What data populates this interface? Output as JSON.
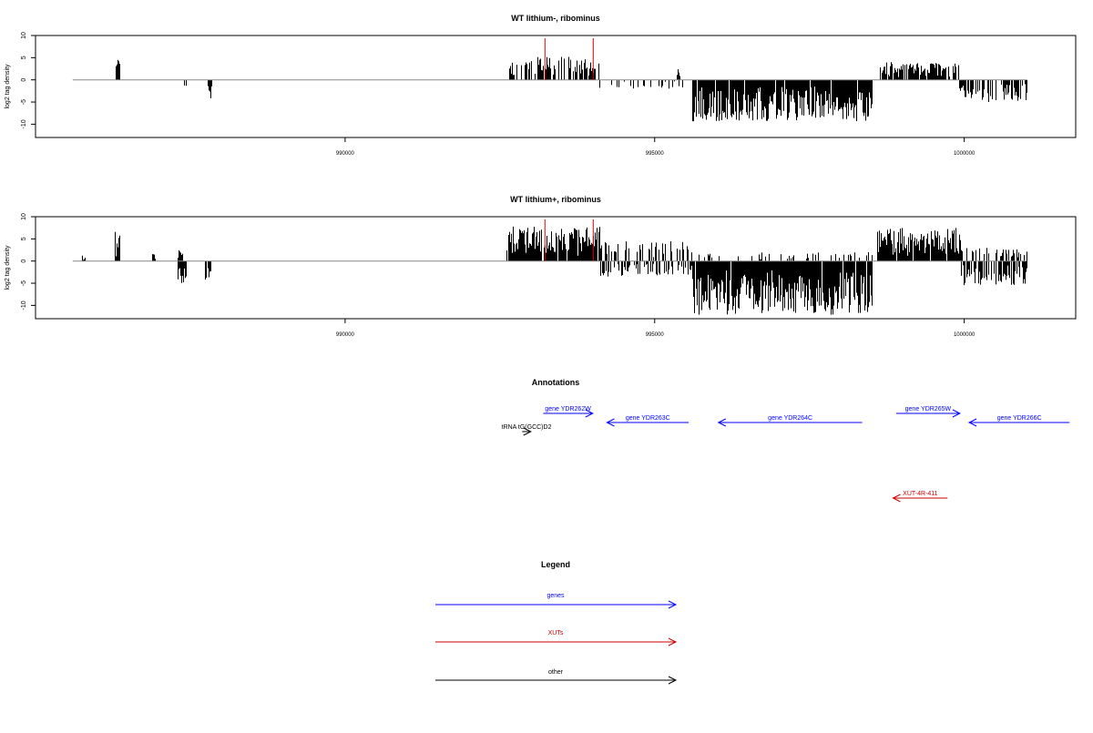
{
  "panels": [
    {
      "title": "WT lithium-, ribominus",
      "ylabel": "log2 tag density",
      "y_ticks": [
        "10",
        "5",
        "0",
        "-5",
        "-10"
      ],
      "x_ticks": [
        "990000",
        "995000",
        "1000000"
      ]
    },
    {
      "title": "WT lithium+, ribominus",
      "ylabel": "log2 tag density",
      "y_ticks": [
        "10",
        "5",
        "0",
        "-5",
        "-10"
      ],
      "x_ticks": [
        "990000",
        "995000",
        "1000000"
      ]
    }
  ],
  "annotations": {
    "title": "Annotations",
    "features": [
      {
        "label": "gene YDR262W",
        "type": "gene",
        "strand": "+",
        "start": 993200,
        "end": 994000,
        "row": 1,
        "color": "#0000ff"
      },
      {
        "label": "gene YDR263C",
        "type": "gene",
        "strand": "-",
        "start": 994230,
        "end": 995550,
        "row": 2,
        "color": "#0000ff"
      },
      {
        "label": "gene YDR264C",
        "type": "gene",
        "strand": "-",
        "start": 996030,
        "end": 998350,
        "row": 2,
        "color": "#0000ff"
      },
      {
        "label": "gene YDR265W",
        "type": "gene",
        "strand": "+",
        "start": 998900,
        "end": 999930,
        "row": 1,
        "color": "#0000ff"
      },
      {
        "label": "gene YDR266C",
        "type": "gene",
        "strand": "-",
        "start": 1000080,
        "end": 1001700,
        "row": 2,
        "color": "#0000ff"
      },
      {
        "label": "tRNA tG(GCC)D2",
        "type": "other",
        "strand": "+",
        "start": 992860,
        "end": 993000,
        "row": 3,
        "color": "#000000"
      },
      {
        "label": "XUT-4R-411",
        "type": "XUT",
        "strand": "-",
        "start": 998850,
        "end": 999730,
        "row": 4,
        "color": "#cc0000"
      }
    ]
  },
  "legend": {
    "title": "Legend",
    "items": [
      {
        "label": "genes",
        "color": "#0000ff"
      },
      {
        "label": "XUTs",
        "color": "#cc0000"
      },
      {
        "label": "other",
        "color": "#000000"
      }
    ]
  },
  "chart_data": [
    {
      "type": "bar",
      "title": "WT lithium-, ribominus",
      "xlabel": "",
      "ylabel": "log2 tag density",
      "xlim": [
        985000,
        1001800
      ],
      "ylim": [
        -13,
        10
      ],
      "x_ticks": [
        990000,
        995000,
        1000000
      ],
      "y_ticks": [
        10,
        5,
        0,
        -5,
        -10
      ],
      "baseline": {
        "from": 985600,
        "to": 1001000
      },
      "markers": [
        993220,
        994000
      ],
      "regions": [
        {
          "from": 986300,
          "to": 986350,
          "sign": 1,
          "max": 4.6,
          "density": 0.9
        },
        {
          "from": 987400,
          "to": 987430,
          "sign": -1,
          "max": 2.2,
          "density": 0.6
        },
        {
          "from": 987780,
          "to": 987850,
          "sign": -1,
          "max": 4.2,
          "density": 0.9
        },
        {
          "from": 992600,
          "to": 994100,
          "sign": 1,
          "max": 5.2,
          "density": 0.55
        },
        {
          "from": 994100,
          "to": 995500,
          "sign": -1,
          "max": 2.0,
          "density": 0.18
        },
        {
          "from": 995350,
          "to": 995400,
          "sign": 1,
          "max": 2.8,
          "density": 0.9
        },
        {
          "from": 995600,
          "to": 998500,
          "sign": -1,
          "max": 9.4,
          "density": 0.95
        },
        {
          "from": 998600,
          "to": 999900,
          "sign": 1,
          "max": 4.0,
          "density": 0.7
        },
        {
          "from": 999900,
          "to": 1001000,
          "sign": -1,
          "max": 5.0,
          "density": 0.55
        }
      ]
    },
    {
      "type": "bar",
      "title": "WT lithium+, ribominus",
      "xlabel": "",
      "ylabel": "log2 tag density",
      "xlim": [
        985000,
        1001800
      ],
      "ylim": [
        -13,
        10
      ],
      "x_ticks": [
        990000,
        995000,
        1000000
      ],
      "y_ticks": [
        10,
        5,
        0,
        -5,
        -10
      ],
      "baseline": {
        "from": 985600,
        "to": 1001000
      },
      "markers": [
        993220,
        994000
      ],
      "regions": [
        {
          "from": 985750,
          "to": 985790,
          "sign": 1,
          "max": 1.5,
          "density": 0.8
        },
        {
          "from": 986280,
          "to": 986360,
          "sign": 1,
          "max": 6.8,
          "density": 0.9
        },
        {
          "from": 986880,
          "to": 986930,
          "sign": 1,
          "max": 2.8,
          "density": 0.9
        },
        {
          "from": 987300,
          "to": 987400,
          "sign": 1,
          "max": 4.2,
          "density": 0.9
        },
        {
          "from": 987300,
          "to": 987420,
          "sign": -1,
          "max": 5.2,
          "density": 0.9
        },
        {
          "from": 987730,
          "to": 987820,
          "sign": -1,
          "max": 4.4,
          "density": 0.9
        },
        {
          "from": 992600,
          "to": 994100,
          "sign": 1,
          "max": 7.8,
          "density": 0.95
        },
        {
          "from": 994100,
          "to": 995600,
          "sign": -1,
          "max": 3.5,
          "density": 0.5
        },
        {
          "from": 994100,
          "to": 995600,
          "sign": 1,
          "max": 4.5,
          "density": 0.45
        },
        {
          "from": 995600,
          "to": 998500,
          "sign": -1,
          "max": 12.2,
          "density": 0.98
        },
        {
          "from": 995600,
          "to": 998500,
          "sign": 1,
          "max": 2.0,
          "density": 0.2
        },
        {
          "from": 998600,
          "to": 999950,
          "sign": 1,
          "max": 7.5,
          "density": 0.95
        },
        {
          "from": 999950,
          "to": 1001000,
          "sign": -1,
          "max": 5.5,
          "density": 0.7
        },
        {
          "from": 999950,
          "to": 1001000,
          "sign": 1,
          "max": 3.0,
          "density": 0.4
        }
      ]
    }
  ]
}
